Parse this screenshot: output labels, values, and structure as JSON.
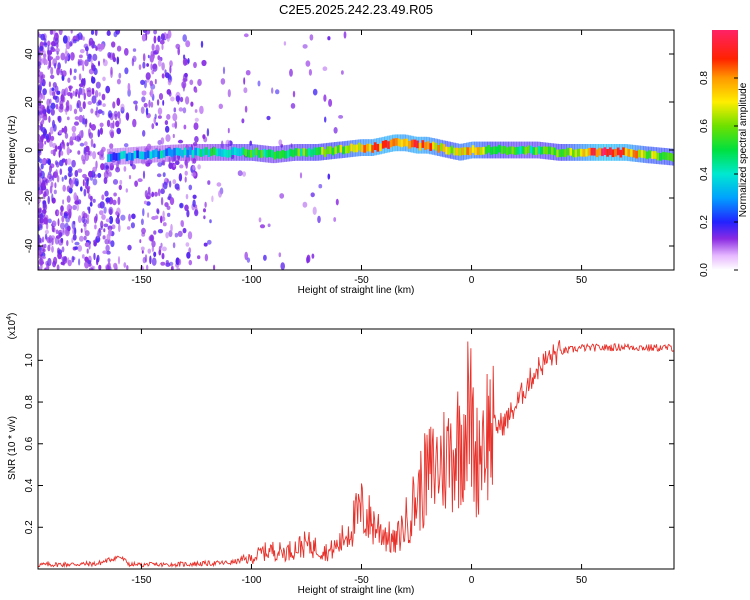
{
  "title": "C2E5.2025.242.23.49.R05",
  "chart_data": [
    {
      "type": "heatmap",
      "name": "spectrogram",
      "xlabel": "Height of straight line (km)",
      "ylabel": "Frequency (Hz)",
      "xlim": [
        -197,
        92
      ],
      "ylim": [
        -50,
        50
      ],
      "xticks": [
        -150,
        -100,
        -50,
        0,
        50
      ],
      "xtick_labels": [
        "-150",
        "-100",
        "-50",
        "0",
        "50"
      ],
      "yticks": [
        -40,
        -20,
        0,
        20,
        40
      ],
      "ytick_labels": [
        "-40",
        "-20",
        "0",
        "20",
        "40"
      ],
      "ridge": {
        "x": [
          -165,
          -150,
          -130,
          -110,
          -100,
          -90,
          -80,
          -70,
          -60,
          -50,
          -45,
          -40,
          -35,
          -30,
          -25,
          -20,
          -15,
          -10,
          -5,
          0,
          10,
          20,
          30,
          40,
          50,
          60,
          70,
          80,
          92
        ],
        "center_hz": [
          -3,
          -2,
          -1,
          -1,
          -1,
          -2,
          -1,
          -1,
          0,
          1,
          1,
          2,
          3,
          3,
          2,
          2,
          1,
          0,
          -1,
          0,
          0,
          0,
          0,
          -1,
          -1,
          -1,
          -1,
          -2,
          -3
        ],
        "amplitude": [
          0.28,
          0.3,
          0.35,
          0.45,
          0.5,
          0.45,
          0.5,
          0.55,
          0.6,
          0.75,
          0.8,
          0.85,
          0.85,
          0.8,
          0.85,
          0.8,
          0.7,
          0.6,
          0.7,
          0.75,
          0.55,
          0.5,
          0.5,
          0.55,
          0.75,
          0.95,
          0.85,
          0.65,
          0.6
        ]
      },
      "colorbar": {
        "label": "Normalized spectral amplitude",
        "range": [
          0,
          1
        ],
        "ticks": [
          0.0,
          0.2,
          0.4,
          0.6,
          0.8
        ],
        "tick_labels": [
          "0.0",
          "0.2",
          "0.4",
          "0.6",
          "0.8"
        ]
      }
    },
    {
      "type": "line",
      "name": "snr",
      "xlabel": "Height of straight line (km)",
      "ylabel": "SNR (10 * v/v)",
      "scale_label_base": "(x10",
      "scale_label_exp": "4",
      "scale_label_end": ")",
      "xlim": [
        -197,
        92
      ],
      "ylim": [
        0,
        1.15
      ],
      "xticks": [
        -150,
        -100,
        -50,
        0,
        50
      ],
      "xtick_labels": [
        "-150",
        "-100",
        "-50",
        "0",
        "50"
      ],
      "yticks": [
        0.2,
        0.4,
        0.6,
        0.8,
        1.0
      ],
      "ytick_labels": [
        "0.2",
        "0.4",
        "0.6",
        "0.8",
        "1.0"
      ],
      "color": "#e8312a",
      "series": [
        {
          "name": "SNR",
          "x": [
            -197,
            -170,
            -160,
            -155,
            -140,
            -125,
            -110,
            -100,
            -95,
            -90,
            -85,
            -80,
            -75,
            -70,
            -65,
            -60,
            -55,
            -50,
            -45,
            -40,
            -35,
            -30,
            -25,
            -20,
            -15,
            -10,
            -5,
            -2,
            0,
            2,
            5,
            10,
            15,
            20,
            25,
            30,
            35,
            40,
            45,
            50,
            60,
            70,
            80,
            92
          ],
          "y": [
            0.02,
            0.025,
            0.06,
            0.02,
            0.02,
            0.025,
            0.03,
            0.05,
            0.08,
            0.09,
            0.08,
            0.1,
            0.12,
            0.1,
            0.08,
            0.12,
            0.2,
            0.28,
            0.22,
            0.18,
            0.12,
            0.22,
            0.34,
            0.45,
            0.5,
            0.55,
            0.62,
            0.75,
            0.7,
            0.5,
            0.65,
            0.68,
            0.7,
            0.78,
            0.88,
            0.96,
            1.01,
            1.04,
            1.05,
            1.06,
            1.06,
            1.065,
            1.06,
            1.06
          ]
        }
      ]
    }
  ]
}
